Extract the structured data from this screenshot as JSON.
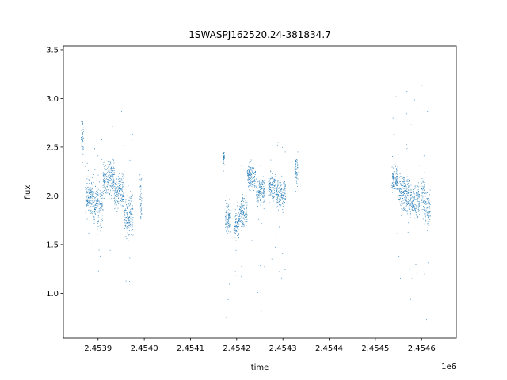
{
  "chart_data": {
    "type": "scatter",
    "title": "1SWASPJ162520.24-381834.7",
    "xlabel": "time",
    "ylabel": "flux",
    "x_offset_label": "1e6",
    "xlim": [
      2.453825,
      2.454675
    ],
    "ylim": [
      0.54,
      3.54
    ],
    "x_ticks": [
      2.4539,
      2.454,
      2.4541,
      2.4542,
      2.4543,
      2.4544,
      2.4545,
      2.4546
    ],
    "x_tick_labels": [
      "2.4539",
      "2.4540",
      "2.4541",
      "2.4542",
      "2.4543",
      "2.4544",
      "2.4545",
      "2.4546"
    ],
    "y_ticks": [
      1.0,
      1.5,
      2.0,
      2.5,
      3.0,
      3.5
    ],
    "y_tick_labels": [
      "1.0",
      "1.5",
      "2.0",
      "2.5",
      "3.0",
      "3.5"
    ],
    "point_color": "#1f77b4",
    "grid": false,
    "legend": "none",
    "segments": [
      {
        "x": [
          2.453862,
          2.453868
        ],
        "y_range": [
          2.35,
          2.85
        ],
        "outlier_range": [
          1.0,
          3.1
        ]
      },
      {
        "x": [
          2.453872,
          2.45389
        ],
        "y_range": [
          1.75,
          2.25
        ],
        "outlier_range": [
          1.5,
          2.4
        ]
      },
      {
        "x": [
          2.45389,
          2.45391
        ],
        "y_range": [
          1.6,
          2.2
        ],
        "outlier_range": [
          1.2,
          2.6
        ]
      },
      {
        "x": [
          2.45391,
          2.453935
        ],
        "y_range": [
          1.9,
          2.45
        ],
        "outlier_range": [
          1.0,
          3.4
        ]
      },
      {
        "x": [
          2.453935,
          2.453955
        ],
        "y_range": [
          1.8,
          2.3
        ],
        "outlier_range": [
          1.2,
          3.2
        ]
      },
      {
        "x": [
          2.453955,
          2.453975
        ],
        "y_range": [
          1.5,
          2.1
        ],
        "outlier_range": [
          0.8,
          3.0
        ]
      },
      {
        "x": [
          2.45399,
          2.453994
        ],
        "y_range": [
          1.6,
          2.3
        ],
        "outlier_range": [
          1.5,
          2.5
        ]
      },
      {
        "x": [
          2.45417,
          2.454173
        ],
        "y_range": [
          2.3,
          2.5
        ],
        "outlier_range": [
          2.2,
          2.6
        ]
      },
      {
        "x": [
          2.454175,
          2.454185
        ],
        "y_range": [
          1.55,
          2.0
        ],
        "outlier_range": [
          0.75,
          2.1
        ]
      },
      {
        "x": [
          2.454195,
          2.454205
        ],
        "y_range": [
          1.5,
          1.9
        ],
        "outlier_range": [
          1.0,
          2.0
        ]
      },
      {
        "x": [
          2.454205,
          2.454222
        ],
        "y_range": [
          1.6,
          2.1
        ],
        "outlier_range": [
          0.8,
          2.5
        ]
      },
      {
        "x": [
          2.454222,
          2.45424
        ],
        "y_range": [
          2.0,
          2.4
        ],
        "outlier_range": [
          1.1,
          3.25
        ]
      },
      {
        "x": [
          2.454242,
          2.45426
        ],
        "y_range": [
          1.85,
          2.25
        ],
        "outlier_range": [
          0.8,
          2.4
        ]
      },
      {
        "x": [
          2.454268,
          2.454285
        ],
        "y_range": [
          1.9,
          2.3
        ],
        "outlier_range": [
          1.2,
          2.45
        ]
      },
      {
        "x": [
          2.454285,
          2.454305
        ],
        "y_range": [
          1.8,
          2.25
        ],
        "outlier_range": [
          0.85,
          2.7
        ]
      },
      {
        "x": [
          2.454325,
          2.454332
        ],
        "y_range": [
          2.05,
          2.45
        ],
        "outlier_range": [
          1.9,
          2.6
        ]
      },
      {
        "x": [
          2.454535,
          2.454548
        ],
        "y_range": [
          2.0,
          2.35
        ],
        "outlier_range": [
          1.2,
          3.15
        ]
      },
      {
        "x": [
          2.45455,
          2.454575
        ],
        "y_range": [
          1.75,
          2.3
        ],
        "outlier_range": [
          0.8,
          3.15
        ]
      },
      {
        "x": [
          2.454575,
          2.454595
        ],
        "y_range": [
          1.7,
          2.2
        ],
        "outlier_range": [
          0.85,
          3.05
        ]
      },
      {
        "x": [
          2.454598,
          2.454605
        ],
        "y_range": [
          1.75,
          2.3
        ],
        "outlier_range": [
          1.2,
          3.2
        ]
      },
      {
        "x": [
          2.454605,
          2.454618
        ],
        "y_range": [
          1.6,
          2.15
        ],
        "outlier_range": [
          0.65,
          3.32
        ]
      }
    ]
  }
}
